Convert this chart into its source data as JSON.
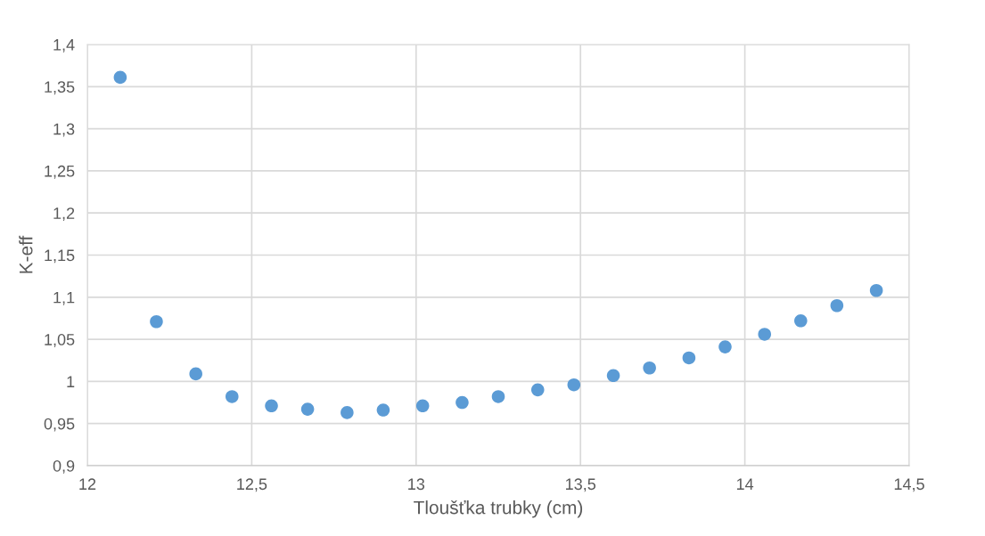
{
  "chart_data": {
    "type": "scatter",
    "xlabel": "Tloušťka trubky (cm)",
    "ylabel": "K-eff",
    "x": [
      12.1,
      12.21,
      12.33,
      12.44,
      12.56,
      12.67,
      12.79,
      12.9,
      13.02,
      13.14,
      13.25,
      13.37,
      13.48,
      13.6,
      13.71,
      13.83,
      13.94,
      14.06,
      14.17,
      14.28,
      14.4
    ],
    "series": [
      {
        "color": "#5b9bd5",
        "values": [
          1.361,
          1.071,
          1.009,
          0.982,
          0.971,
          0.967,
          0.963,
          0.966,
          0.971,
          0.975,
          0.982,
          0.99,
          0.996,
          1.007,
          1.016,
          1.028,
          1.041,
          1.056,
          1.072,
          1.09,
          1.108
        ]
      }
    ],
    "xlim": [
      12,
      14.5
    ],
    "ylim": [
      0.9,
      1.4
    ],
    "xticks": [
      12,
      {
        "value": 12.5,
        "label": "12,5"
      },
      13,
      {
        "value": 13.5,
        "label": "13,5"
      },
      14,
      {
        "value": 14.5,
        "label": "14,5"
      }
    ],
    "yticks": [
      {
        "value": 0.9,
        "label": "0,9"
      },
      {
        "value": 0.95,
        "label": "0,95"
      },
      1,
      {
        "value": 1.05,
        "label": "1,05"
      },
      {
        "value": 1.1,
        "label": "1,1"
      },
      {
        "value": 1.15,
        "label": "1,15"
      },
      {
        "value": 1.2,
        "label": "1,2"
      },
      {
        "value": 1.25,
        "label": "1,25"
      },
      {
        "value": 1.3,
        "label": "1,3"
      },
      {
        "value": 1.35,
        "label": "1,35"
      },
      {
        "value": 1.4,
        "label": "1,4"
      }
    ],
    "grid": true,
    "marker": "circle"
  }
}
